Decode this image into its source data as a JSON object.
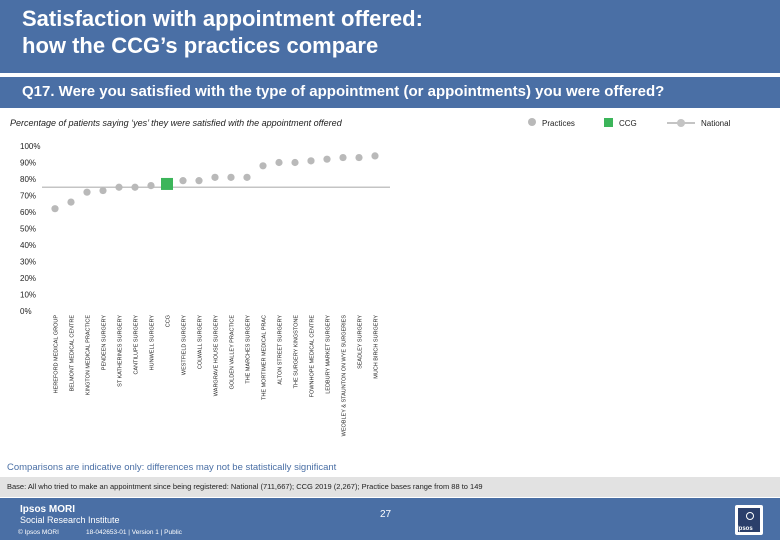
{
  "header": {
    "title_line1": "Satisfaction with appointment offered:",
    "title_line2": "how the CCG’s practices compare"
  },
  "question": "Q17. Were you satisfied with the type of appointment (or appointments) you were offered?",
  "legend": {
    "practices": "Practices",
    "ccg": "CCG",
    "national": "National"
  },
  "colors": {
    "header": "#4a6fa5",
    "practices": "#b9b9b9",
    "ccg": "#3cb55a",
    "national": "#c4c4c4"
  },
  "chart_data": {
    "type": "scatter",
    "subtitle": "Percentage of patients saying ‘yes’ they were satisfied with the appointment offered",
    "ylim": [
      0,
      100
    ],
    "yticks": [
      0,
      10,
      20,
      30,
      40,
      50,
      60,
      70,
      80,
      90,
      100
    ],
    "ytick_labels": [
      "0%",
      "10%",
      "20%",
      "30%",
      "40%",
      "50%",
      "60%",
      "70%",
      "80%",
      "90%",
      "100%"
    ],
    "national_value": 75,
    "ccg_category": "CCG",
    "categories": [
      "HEREFORD MEDICAL GROUP",
      "BELMONT MEDICAL CENTRE",
      "KINGTON MEDICAL PRACTICE",
      "PENDEEN SURGERY",
      "ST KATHERINES SURGERY",
      "CANTILUPE SURGERY",
      "HUNWELL SURGERY",
      "CCG",
      "WESTFIELD SURGERY",
      "COLWALL SURGERY",
      "WARGRAVE HOUSE SURGERY",
      "GOLDEN VALLEY PRACTICE",
      "THE MARCHES SURGERY",
      "THE MORTIMER MEDICAL PRAC",
      "ALTON STREET SURGERY",
      "THE SURGERY KINGSTONE",
      "FOWNHOPE MEDICAL CENTRE",
      "LEDBURY MARKET SURGERY",
      "WEOBLEY & STAUNTON ON WYE SURGERIES",
      "SEADLEY SURGERY",
      "MUCH BIRCH SURGERY"
    ],
    "values": [
      62,
      66,
      72,
      73,
      75,
      75,
      76,
      77,
      79,
      79,
      81,
      81,
      81,
      88,
      90,
      90,
      91,
      92,
      93,
      93,
      94
    ]
  },
  "comparisons_note": "Comparisons are indicative only: differences may not be statistically significant",
  "base_note": "Base: All who tried to make an appointment since being registered: National (711,667); CCG 2019 (2,267); Practice bases range from 88 to 149",
  "footer": {
    "logo_name": "Ipsos MORI",
    "logo_sub": "Social Research Institute",
    "copyright": "© Ipsos MORI",
    "job": "18-042653-01 | Version 1 | Public",
    "page_number": "27",
    "corner_logo_text": "Ipsos"
  }
}
